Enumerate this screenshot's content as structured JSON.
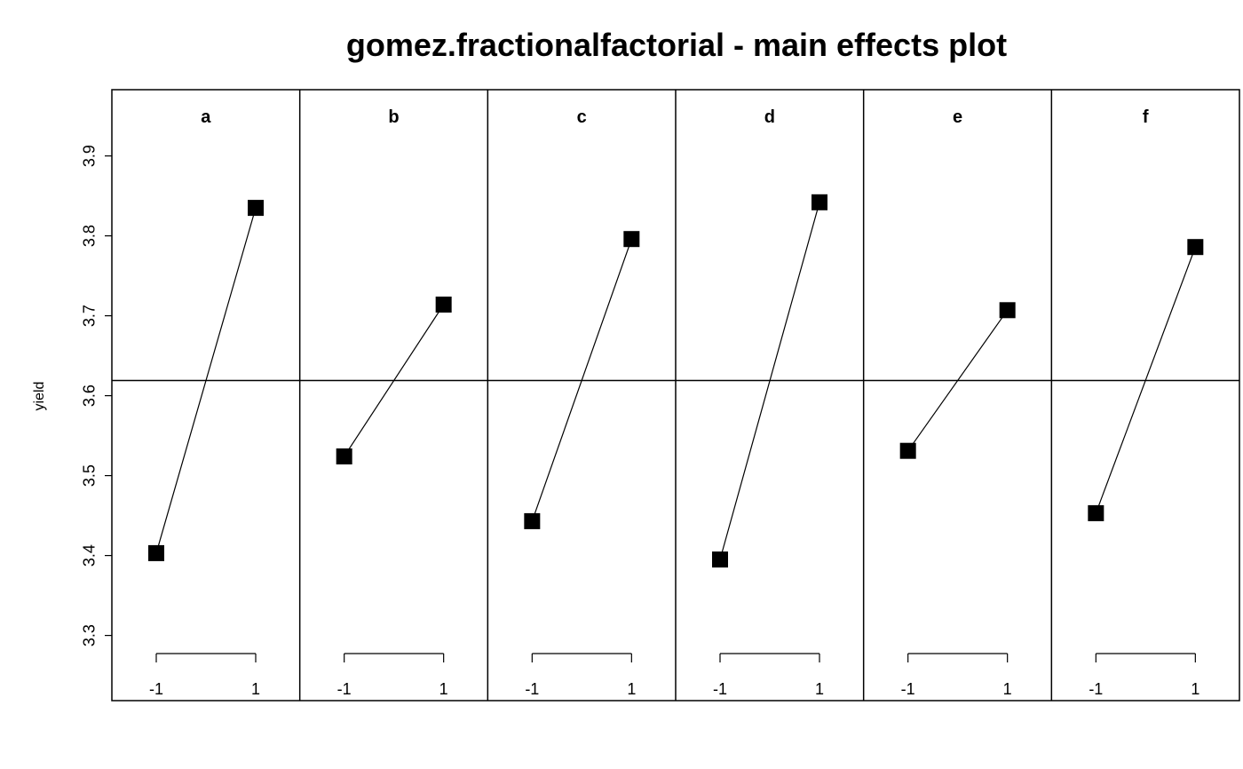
{
  "chart_data": {
    "type": "line",
    "title": "gomez.fractionalfactorial - main effects plot",
    "ylabel": "yield",
    "ylim": [
      3.24,
      3.97
    ],
    "y_ticks": [
      3.3,
      3.4,
      3.5,
      3.6,
      3.7,
      3.8,
      3.9
    ],
    "y_tick_labels": [
      "3.3",
      "3.4",
      "3.5",
      "3.6",
      "3.7",
      "3.8",
      "3.9"
    ],
    "grand_mean": 3.619,
    "levels": [
      "-1",
      "1"
    ],
    "factors": [
      {
        "name": "a",
        "values": [
          3.403,
          3.835
        ]
      },
      {
        "name": "b",
        "values": [
          3.524,
          3.714
        ]
      },
      {
        "name": "c",
        "values": [
          3.443,
          3.796
        ]
      },
      {
        "name": "d",
        "values": [
          3.395,
          3.842
        ]
      },
      {
        "name": "e",
        "values": [
          3.531,
          3.707
        ]
      },
      {
        "name": "f",
        "values": [
          3.453,
          3.786
        ]
      }
    ]
  }
}
